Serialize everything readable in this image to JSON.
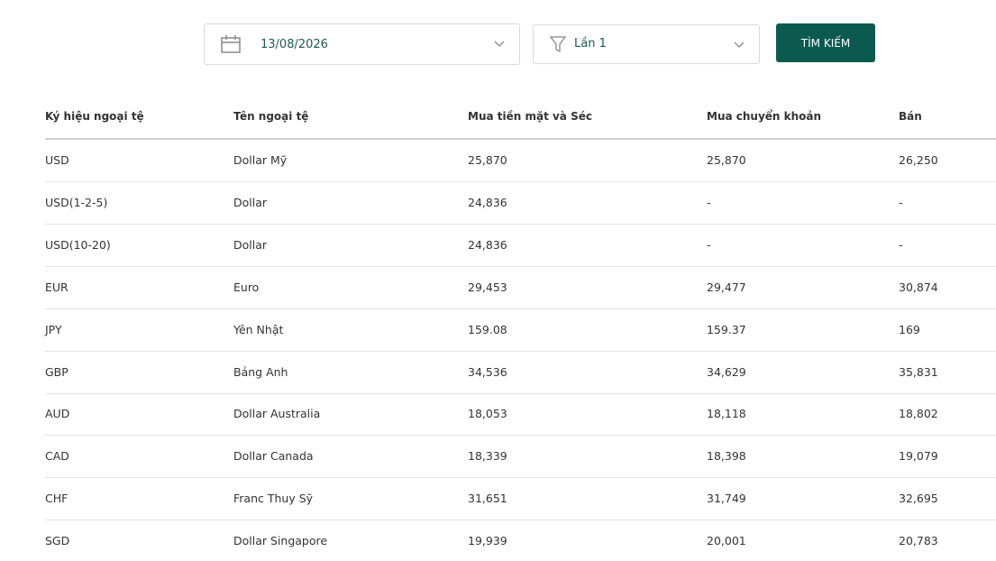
{
  "filters": {
    "date": "13/08/2026",
    "round": "Lần 1",
    "button": "TÌM KIẾM"
  },
  "table": {
    "headers": [
      "Ký hiệu ngoại tệ",
      "Tên ngoại tệ",
      "Mua tiền mặt và Séc",
      "Mua chuyển khoản",
      "Bán"
    ],
    "rows": [
      [
        "USD",
        "Dollar Mỹ",
        "25,870",
        "25,870",
        "26,250"
      ],
      [
        "USD(1-2-5)",
        "Dollar",
        "24,836",
        "-",
        "-"
      ],
      [
        "USD(10-20)",
        "Dollar",
        "24,836",
        "-",
        "-"
      ],
      [
        "EUR",
        "Euro",
        "29,453",
        "29,477",
        "30,874"
      ],
      [
        "JPY",
        "Yên Nhật",
        "159.08",
        "159.37",
        "169"
      ],
      [
        "GBP",
        "Bảng Anh",
        "34,536",
        "34,629",
        "35,831"
      ],
      [
        "AUD",
        "Dollar Australia",
        "18,053",
        "18,118",
        "18,802"
      ],
      [
        "CAD",
        "Dollar Canada",
        "18,339",
        "18,398",
        "19,079"
      ],
      [
        "CHF",
        "Franc Thuy Sỹ",
        "31,651",
        "31,749",
        "32,695"
      ],
      [
        "SGD",
        "Dollar Singapore",
        "19,939",
        "20,001",
        "20,783"
      ]
    ]
  }
}
